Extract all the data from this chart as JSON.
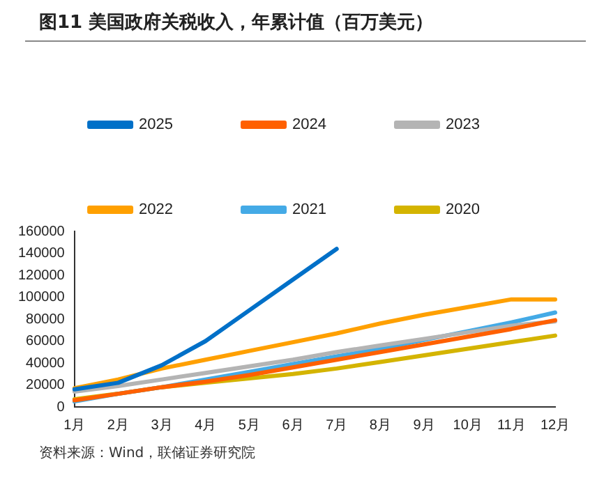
{
  "chart_data": {
    "type": "line",
    "title": "图11 美国政府关税收入，年累计值（百万美元）",
    "categories": [
      "1月",
      "2月",
      "3月",
      "4月",
      "5月",
      "6月",
      "7月",
      "8月",
      "9月",
      "10月",
      "11月",
      "12月"
    ],
    "series": [
      {
        "name": "2025",
        "color": "#0070c8",
        "values": [
          16000,
          22000,
          38000,
          60000,
          88000,
          116000,
          144000,
          null,
          null,
          null,
          null,
          null
        ]
      },
      {
        "name": "2024",
        "color": "#ff6000",
        "values": [
          6000,
          12000,
          18000,
          23000,
          29000,
          36000,
          43000,
          50000,
          57000,
          64000,
          71000,
          79000
        ]
      },
      {
        "name": "2023",
        "color": "#b4b4b4",
        "values": [
          14000,
          19000,
          25000,
          31000,
          37000,
          43000,
          50000,
          56000,
          62000,
          68000,
          74000,
          78000
        ]
      },
      {
        "name": "2022",
        "color": "#ffa000",
        "values": [
          17000,
          25000,
          35000,
          43000,
          51000,
          59000,
          67000,
          76000,
          84000,
          91000,
          98000,
          98000
        ]
      },
      {
        "name": "2021",
        "color": "#44aae6",
        "values": [
          5000,
          12000,
          18000,
          25000,
          32000,
          39000,
          46000,
          53000,
          61000,
          69000,
          77000,
          86000
        ]
      },
      {
        "name": "2020",
        "color": "#d4b400",
        "values": [
          7000,
          12000,
          18000,
          22000,
          26000,
          30000,
          35000,
          41000,
          47000,
          53000,
          59000,
          65000
        ]
      }
    ],
    "ylim": [
      0,
      160000
    ],
    "yticks": [
      0,
      20000,
      40000,
      60000,
      80000,
      100000,
      120000,
      140000,
      160000
    ],
    "grid": false,
    "legend": "top",
    "marker": "none",
    "line_style": "solid",
    "annotations": [
      "资料来源：Wind，联储证券研究院"
    ]
  }
}
